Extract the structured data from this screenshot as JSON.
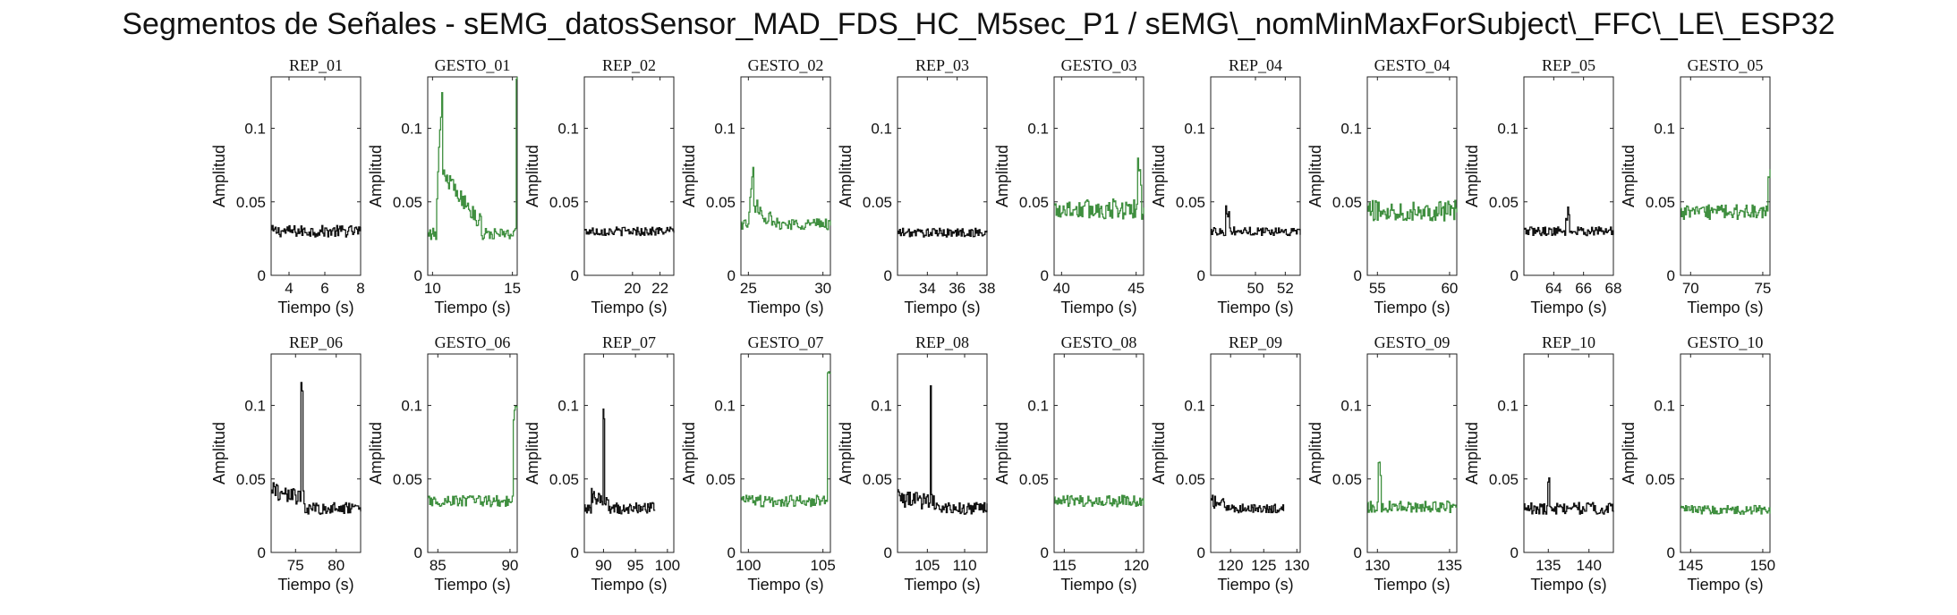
{
  "title": "Segmentos de Señales - sEMG_datosSensor_MAD_FDS_HC_M5sec_P1 / sEMG\\_nomMinMaxForSubject\\_FFC\\_LE\\_ESP32",
  "colors": {
    "rep": "#111111",
    "gesto": "#3f8f3f",
    "axis": "#222222"
  },
  "chart_data": [
    {
      "type": "line",
      "title": "REP_01",
      "xlabel": "Tiempo (s)",
      "ylabel": "Amplitud",
      "xlim": [
        3,
        8
      ],
      "ylim": [
        0,
        0.135
      ],
      "xticks": [
        4,
        6,
        8
      ],
      "yticks": [
        0,
        0.05,
        0.1
      ],
      "ytick_labels": [
        "0",
        "0.05",
        "0.1"
      ],
      "series": [
        {
          "kind": "rep",
          "x": [
            3,
            8
          ],
          "baseline": 0.03,
          "noise": 0.004,
          "segments": []
        }
      ]
    },
    {
      "type": "line",
      "title": "GESTO_01",
      "xlabel": "Tiempo (s)",
      "ylabel": "Amplitud",
      "xlim": [
        9.7,
        15.3
      ],
      "ylim": [
        0,
        0.135
      ],
      "xticks": [
        10,
        15
      ],
      "yticks": [
        0,
        0.05,
        0.1
      ],
      "ytick_labels": [
        "0",
        "0.05",
        "0.1"
      ],
      "series": [
        {
          "kind": "gesto",
          "x": [
            9.7,
            15.3
          ],
          "baseline": 0.028,
          "noise": 0.004,
          "segments": [
            {
              "x0": 10.2,
              "x1": 10.6,
              "y0": 0.04,
              "y1": 0.135
            },
            {
              "x0": 10.6,
              "x1": 13.0,
              "y0": 0.07,
              "y1": 0.035
            },
            {
              "x0": 15.2,
              "x1": 15.3,
              "y0": 0.135,
              "y1": 0.135
            }
          ]
        }
      ]
    },
    {
      "type": "line",
      "title": "REP_02",
      "xlabel": "Tiempo (s)",
      "ylabel": "Amplitud",
      "xlim": [
        16.5,
        23
      ],
      "ylim": [
        0,
        0.135
      ],
      "xticks": [
        20,
        22
      ],
      "yticks": [
        0,
        0.05,
        0.1
      ],
      "ytick_labels": [
        "0",
        "0.05",
        "0.1"
      ],
      "series": [
        {
          "kind": "rep",
          "x": [
            16.5,
            23
          ],
          "baseline": 0.03,
          "noise": 0.003,
          "segments": []
        }
      ]
    },
    {
      "type": "line",
      "title": "GESTO_02",
      "xlabel": "Tiempo (s)",
      "ylabel": "Amplitud",
      "xlim": [
        24.5,
        30.5
      ],
      "ylim": [
        0,
        0.135
      ],
      "xticks": [
        25,
        30
      ],
      "yticks": [
        0,
        0.05,
        0.1
      ],
      "ytick_labels": [
        "0",
        "0.05",
        "0.1"
      ],
      "series": [
        {
          "kind": "gesto",
          "x": [
            24.5,
            30.5
          ],
          "baseline": 0.035,
          "noise": 0.004,
          "segments": [
            {
              "x0": 25.0,
              "x1": 25.3,
              "y0": 0.04,
              "y1": 0.077
            },
            {
              "x0": 25.3,
              "x1": 26.5,
              "y0": 0.05,
              "y1": 0.037
            }
          ]
        }
      ]
    },
    {
      "type": "line",
      "title": "REP_03",
      "xlabel": "Tiempo (s)",
      "ylabel": "Amplitud",
      "xlim": [
        32,
        38
      ],
      "ylim": [
        0,
        0.135
      ],
      "xticks": [
        34,
        36,
        38
      ],
      "yticks": [
        0,
        0.05,
        0.1
      ],
      "ytick_labels": [
        "0",
        "0.05",
        "0.1"
      ],
      "series": [
        {
          "kind": "rep",
          "x": [
            32,
            38
          ],
          "baseline": 0.029,
          "noise": 0.003,
          "segments": []
        }
      ]
    },
    {
      "type": "line",
      "title": "GESTO_03",
      "xlabel": "Tiempo (s)",
      "ylabel": "Amplitud",
      "xlim": [
        39.5,
        45.5
      ],
      "ylim": [
        0,
        0.135
      ],
      "xticks": [
        40,
        45
      ],
      "yticks": [
        0,
        0.05,
        0.1
      ],
      "ytick_labels": [
        "0",
        "0.05",
        "0.1"
      ],
      "series": [
        {
          "kind": "gesto",
          "x": [
            39.5,
            45.5
          ],
          "baseline": 0.045,
          "noise": 0.007,
          "segments": [
            {
              "x0": 45.1,
              "x1": 45.3,
              "y0": 0.07,
              "y1": 0.07
            }
          ]
        }
      ]
    },
    {
      "type": "line",
      "title": "REP_04",
      "xlabel": "Tiempo (s)",
      "ylabel": "Amplitud",
      "xlim": [
        47,
        53
      ],
      "ylim": [
        0,
        0.135
      ],
      "xticks": [
        50,
        52
      ],
      "yticks": [
        0,
        0.05,
        0.1
      ],
      "ytick_labels": [
        "0",
        "0.05",
        "0.1"
      ],
      "series": [
        {
          "kind": "rep",
          "x": [
            47,
            53
          ],
          "baseline": 0.03,
          "noise": 0.003,
          "segments": [
            {
              "x0": 48.0,
              "x1": 48.2,
              "y0": 0.044,
              "y1": 0.044
            }
          ]
        }
      ]
    },
    {
      "type": "line",
      "title": "GESTO_04",
      "xlabel": "Tiempo (s)",
      "ylabel": "Amplitud",
      "xlim": [
        54.3,
        60.5
      ],
      "ylim": [
        0,
        0.135
      ],
      "xticks": [
        55,
        60
      ],
      "yticks": [
        0,
        0.05,
        0.1
      ],
      "ytick_labels": [
        "0",
        "0.05",
        "0.1"
      ],
      "series": [
        {
          "kind": "gesto",
          "x": [
            54.3,
            60.5
          ],
          "baseline": 0.044,
          "noise": 0.007,
          "segments": []
        }
      ]
    },
    {
      "type": "line",
      "title": "REP_05",
      "xlabel": "Tiempo (s)",
      "ylabel": "Amplitud",
      "xlim": [
        62,
        68
      ],
      "ylim": [
        0,
        0.135
      ],
      "xticks": [
        64,
        66,
        68
      ],
      "yticks": [
        0,
        0.05,
        0.1
      ],
      "ytick_labels": [
        "0",
        "0.05",
        "0.1"
      ],
      "series": [
        {
          "kind": "rep",
          "x": [
            62,
            68
          ],
          "baseline": 0.03,
          "noise": 0.003,
          "segments": [
            {
              "x0": 64.8,
              "x1": 65.0,
              "y0": 0.042,
              "y1": 0.042
            }
          ]
        }
      ]
    },
    {
      "type": "line",
      "title": "GESTO_05",
      "xlabel": "Tiempo (s)",
      "ylabel": "Amplitud",
      "xlim": [
        69.3,
        75.5
      ],
      "ylim": [
        0,
        0.135
      ],
      "xticks": [
        70,
        75
      ],
      "yticks": [
        0,
        0.05,
        0.1
      ],
      "ytick_labels": [
        "0",
        "0.05",
        "0.1"
      ],
      "series": [
        {
          "kind": "gesto",
          "x": [
            69.3,
            75.5
          ],
          "baseline": 0.043,
          "noise": 0.005,
          "segments": [
            {
              "x0": 75.3,
              "x1": 75.5,
              "y0": 0.065,
              "y1": 0.065
            }
          ]
        }
      ]
    },
    {
      "type": "line",
      "title": "REP_06",
      "xlabel": "Tiempo (s)",
      "ylabel": "Amplitud",
      "xlim": [
        72,
        83
      ],
      "ylim": [
        0,
        0.135
      ],
      "xticks": [
        75,
        80
      ],
      "yticks": [
        0,
        0.05,
        0.1
      ],
      "ytick_labels": [
        "0",
        "0.05",
        "0.1"
      ],
      "series": [
        {
          "kind": "rep",
          "x": [
            72,
            83
          ],
          "baseline": 0.03,
          "noise": 0.004,
          "segments": [
            {
              "x0": 72,
              "x1": 76,
              "y0": 0.042,
              "y1": 0.036
            },
            {
              "x0": 75.6,
              "x1": 75.8,
              "y0": 0.115,
              "y1": 0.115
            }
          ]
        }
      ]
    },
    {
      "type": "line",
      "title": "GESTO_06",
      "xlabel": "Tiempo (s)",
      "ylabel": "Amplitud",
      "xlim": [
        84.3,
        90.5
      ],
      "ylim": [
        0,
        0.135
      ],
      "xticks": [
        85,
        90
      ],
      "yticks": [
        0,
        0.05,
        0.1
      ],
      "ytick_labels": [
        "0",
        "0.05",
        "0.1"
      ],
      "series": [
        {
          "kind": "gesto",
          "x": [
            84.3,
            90.5
          ],
          "baseline": 0.035,
          "noise": 0.004,
          "segments": [
            {
              "x0": 90.2,
              "x1": 90.5,
              "y0": 0.095,
              "y1": 0.095
            }
          ]
        }
      ]
    },
    {
      "type": "line",
      "title": "REP_07",
      "xlabel": "Tiempo (s)",
      "ylabel": "Amplitud",
      "xlim": [
        87,
        101
      ],
      "ylim": [
        0,
        0.135
      ],
      "xticks": [
        90,
        95,
        100
      ],
      "yticks": [
        0,
        0.05,
        0.1
      ],
      "ytick_labels": [
        "0",
        "0.05",
        "0.1"
      ],
      "series": [
        {
          "kind": "rep",
          "x": [
            87,
            98
          ],
          "baseline": 0.03,
          "noise": 0.004,
          "segments": [
            {
              "x0": 88,
              "x1": 91,
              "y0": 0.038,
              "y1": 0.032
            },
            {
              "x0": 89.9,
              "x1": 90.1,
              "y0": 0.095,
              "y1": 0.095
            }
          ]
        }
      ]
    },
    {
      "type": "line",
      "title": "GESTO_07",
      "xlabel": "Tiempo (s)",
      "ylabel": "Amplitud",
      "xlim": [
        99.5,
        105.5
      ],
      "ylim": [
        0,
        0.135
      ],
      "xticks": [
        100,
        105
      ],
      "yticks": [
        0,
        0.05,
        0.1
      ],
      "ytick_labels": [
        "0",
        "0.05",
        "0.1"
      ],
      "series": [
        {
          "kind": "gesto",
          "x": [
            99.5,
            105.5
          ],
          "baseline": 0.035,
          "noise": 0.004,
          "segments": [
            {
              "x0": 105.3,
              "x1": 105.5,
              "y0": 0.12,
              "y1": 0.12
            }
          ]
        }
      ]
    },
    {
      "type": "line",
      "title": "REP_08",
      "xlabel": "Tiempo (s)",
      "ylabel": "Amplitud",
      "xlim": [
        101,
        113
      ],
      "ylim": [
        0,
        0.135
      ],
      "xticks": [
        105,
        110
      ],
      "yticks": [
        0,
        0.05,
        0.1
      ],
      "ytick_labels": [
        "0",
        "0.05",
        "0.1"
      ],
      "series": [
        {
          "kind": "rep",
          "x": [
            101,
            113
          ],
          "baseline": 0.03,
          "noise": 0.004,
          "segments": [
            {
              "x0": 101,
              "x1": 106,
              "y0": 0.037,
              "y1": 0.033
            },
            {
              "x0": 105.3,
              "x1": 105.5,
              "y0": 0.115,
              "y1": 0.115
            }
          ]
        }
      ]
    },
    {
      "type": "line",
      "title": "GESTO_08",
      "xlabel": "Tiempo (s)",
      "ylabel": "Amplitud",
      "xlim": [
        114.3,
        120.5
      ],
      "ylim": [
        0,
        0.135
      ],
      "xticks": [
        115,
        120
      ],
      "yticks": [
        0,
        0.05,
        0.1
      ],
      "ytick_labels": [
        "0",
        "0.05",
        "0.1"
      ],
      "series": [
        {
          "kind": "gesto",
          "x": [
            114.3,
            120.5
          ],
          "baseline": 0.035,
          "noise": 0.004,
          "segments": []
        }
      ]
    },
    {
      "type": "line",
      "title": "REP_09",
      "xlabel": "Tiempo (s)",
      "ylabel": "Amplitud",
      "xlim": [
        117,
        130.5
      ],
      "ylim": [
        0,
        0.135
      ],
      "xticks": [
        120,
        125,
        130
      ],
      "yticks": [
        0,
        0.05,
        0.1
      ],
      "ytick_labels": [
        "0",
        "0.05",
        "0.1"
      ],
      "series": [
        {
          "kind": "rep",
          "x": [
            117,
            128
          ],
          "baseline": 0.03,
          "noise": 0.003,
          "segments": [
            {
              "x0": 117,
              "x1": 119,
              "y0": 0.035,
              "y1": 0.032
            }
          ]
        }
      ]
    },
    {
      "type": "line",
      "title": "GESTO_09",
      "xlabel": "Tiempo (s)",
      "ylabel": "Amplitud",
      "xlim": [
        129.3,
        135.5
      ],
      "ylim": [
        0,
        0.135
      ],
      "xticks": [
        130,
        135
      ],
      "yticks": [
        0,
        0.05,
        0.1
      ],
      "ytick_labels": [
        "0",
        "0.05",
        "0.1"
      ],
      "series": [
        {
          "kind": "gesto",
          "x": [
            129.3,
            135.5
          ],
          "baseline": 0.031,
          "noise": 0.004,
          "segments": [
            {
              "x0": 130.0,
              "x1": 130.2,
              "y0": 0.056,
              "y1": 0.056
            }
          ]
        }
      ]
    },
    {
      "type": "line",
      "title": "REP_10",
      "xlabel": "Tiempo (s)",
      "ylabel": "Amplitud",
      "xlim": [
        132,
        143
      ],
      "ylim": [
        0,
        0.135
      ],
      "xticks": [
        135,
        140
      ],
      "yticks": [
        0,
        0.05,
        0.1
      ],
      "ytick_labels": [
        "0",
        "0.05",
        "0.1"
      ],
      "series": [
        {
          "kind": "rep",
          "x": [
            132,
            143
          ],
          "baseline": 0.03,
          "noise": 0.004,
          "segments": [
            {
              "x0": 134.9,
              "x1": 135.1,
              "y0": 0.05,
              "y1": 0.05
            }
          ]
        }
      ]
    },
    {
      "type": "line",
      "title": "GESTO_10",
      "xlabel": "Tiempo (s)",
      "ylabel": "Amplitud",
      "xlim": [
        144.3,
        150.5
      ],
      "ylim": [
        0,
        0.135
      ],
      "xticks": [
        145,
        150
      ],
      "yticks": [
        0,
        0.05,
        0.1
      ],
      "ytick_labels": [
        "0",
        "0.05",
        "0.1"
      ],
      "series": [
        {
          "kind": "gesto",
          "x": [
            144.3,
            150.5
          ],
          "baseline": 0.029,
          "noise": 0.003,
          "segments": []
        }
      ]
    }
  ]
}
